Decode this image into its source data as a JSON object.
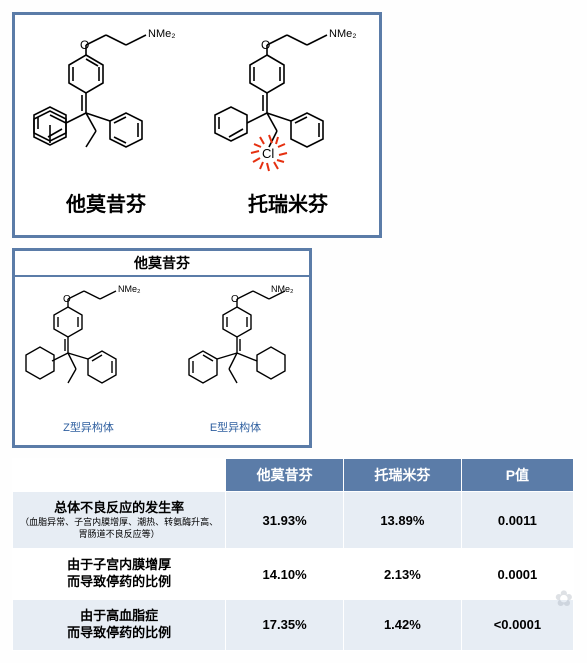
{
  "panel1": {
    "left_label": "他莫昔芬",
    "right_label": "托瑞米芬",
    "nme2": "NMe₂",
    "cl": "Cl"
  },
  "panel2": {
    "title": "他莫昔芬",
    "left_sublabel": "Z型异构体",
    "right_sublabel": "E型异构体",
    "nme2": "NMe₂"
  },
  "table": {
    "headers": {
      "c0": "",
      "c1": "他莫昔芬",
      "c2": "托瑞米芬",
      "c3": "P值"
    },
    "rows": [
      {
        "label": "总体不良反应的发生率",
        "sub": "（血脂异常、子宫内膜增厚、潮热、转氨酶升高、胃肠道不良反应等）",
        "v1": "31.93%",
        "v2": "13.89%",
        "p": "0.0011"
      },
      {
        "label": "由于子宫内膜增厚\n而导致停药的比例",
        "sub": "",
        "v1": "14.10%",
        "v2": "2.13%",
        "p": "0.0001"
      },
      {
        "label": "由于高血脂症\n而导致停药的比例",
        "sub": "",
        "v1": "17.35%",
        "v2": "1.42%",
        "p": "<0.0001"
      }
    ]
  },
  "colors": {
    "panel_border": "#5b7ca8",
    "header_bg": "#5b7ca8",
    "row_tint": "#e7edf4",
    "highlight_red": "#e53010",
    "link_blue": "#3060a0"
  }
}
